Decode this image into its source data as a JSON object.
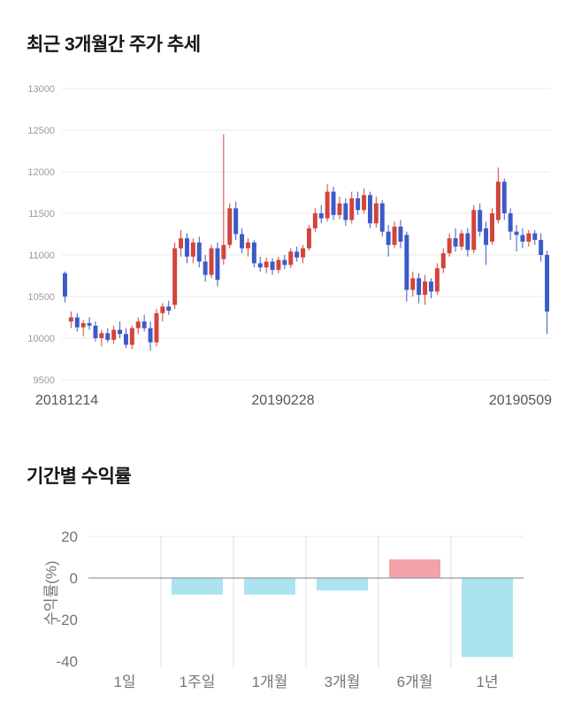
{
  "sections": {
    "price_trend": {
      "title": "최근 3개월간 주가 추세"
    },
    "returns": {
      "title": "기간별 수익률"
    }
  },
  "chart_data": [
    {
      "type": "candlestick",
      "title": "최근 3개월간 주가 추세",
      "ylim": [
        9500,
        13000
      ],
      "y_ticks": [
        13000,
        12500,
        12000,
        11500,
        11000,
        10500,
        10000,
        9500
      ],
      "x_tick_labels": [
        "20181214",
        "20190228",
        "20190509"
      ],
      "grid": "horizontal",
      "up_color": "#d2443c",
      "down_color": "#3c5bc7",
      "grid_color": "#e8e8e8",
      "candles": [
        [
          10780,
          10800,
          10430,
          10500
        ],
        [
          10200,
          10320,
          10120,
          10250
        ],
        [
          10250,
          10300,
          10080,
          10130
        ],
        [
          10130,
          10220,
          10020,
          10180
        ],
        [
          10180,
          10250,
          10100,
          10150
        ],
        [
          10150,
          10200,
          9960,
          10000
        ],
        [
          10000,
          10100,
          9900,
          10060
        ],
        [
          10060,
          10120,
          9950,
          9980
        ],
        [
          9980,
          10150,
          9930,
          10100
        ],
        [
          10100,
          10200,
          10000,
          10050
        ],
        [
          10050,
          10120,
          9880,
          9920
        ],
        [
          9920,
          10150,
          9870,
          10120
        ],
        [
          10120,
          10250,
          10050,
          10200
        ],
        [
          10200,
          10280,
          10080,
          10120
        ],
        [
          10120,
          10200,
          9850,
          9950
        ],
        [
          9950,
          10350,
          9900,
          10300
        ],
        [
          10300,
          10420,
          10200,
          10380
        ],
        [
          10380,
          10450,
          10280,
          10330
        ],
        [
          10400,
          11150,
          10350,
          11080
        ],
        [
          11080,
          11300,
          10980,
          11200
        ],
        [
          11200,
          11260,
          10900,
          10980
        ],
        [
          10980,
          11200,
          10900,
          11150
        ],
        [
          11150,
          11220,
          10850,
          10920
        ],
        [
          10920,
          11000,
          10680,
          10760
        ],
        [
          10760,
          11120,
          10720,
          11080
        ],
        [
          11080,
          11150,
          10620,
          10700
        ],
        [
          10950,
          12450,
          10880,
          11120
        ],
        [
          11120,
          11620,
          11080,
          11560
        ],
        [
          11560,
          11640,
          11180,
          11250
        ],
        [
          11250,
          11320,
          11020,
          11080
        ],
        [
          11080,
          11200,
          10980,
          11150
        ],
        [
          11150,
          11180,
          10850,
          10900
        ],
        [
          10900,
          10980,
          10800,
          10850
        ],
        [
          10850,
          10970,
          10780,
          10920
        ],
        [
          10920,
          10960,
          10760,
          10820
        ],
        [
          10820,
          10980,
          10780,
          10940
        ],
        [
          10940,
          11000,
          10830,
          10880
        ],
        [
          10880,
          11080,
          10840,
          11040
        ],
        [
          11040,
          11100,
          10920,
          10970
        ],
        [
          10970,
          11120,
          10900,
          11080
        ],
        [
          11080,
          11360,
          11050,
          11320
        ],
        [
          11320,
          11560,
          11280,
          11500
        ],
        [
          11500,
          11600,
          11380,
          11440
        ],
        [
          11440,
          11850,
          11400,
          11760
        ],
        [
          11760,
          11820,
          11420,
          11480
        ],
        [
          11480,
          11700,
          11430,
          11620
        ],
        [
          11620,
          11680,
          11350,
          11420
        ],
        [
          11420,
          11760,
          11380,
          11680
        ],
        [
          11680,
          11760,
          11480,
          11540
        ],
        [
          11540,
          11800,
          11500,
          11720
        ],
        [
          11720,
          11760,
          11320,
          11380
        ],
        [
          11380,
          11700,
          11330,
          11620
        ],
        [
          11620,
          11660,
          11220,
          11280
        ],
        [
          11280,
          11360,
          10980,
          11120
        ],
        [
          11120,
          11400,
          11080,
          11340
        ],
        [
          11340,
          11420,
          11080,
          11160
        ],
        [
          11240,
          11280,
          10440,
          10580
        ],
        [
          10580,
          10800,
          10500,
          10720
        ],
        [
          10720,
          10780,
          10420,
          10520
        ],
        [
          10520,
          10760,
          10400,
          10680
        ],
        [
          10680,
          10720,
          10480,
          10560
        ],
        [
          10560,
          10900,
          10520,
          10840
        ],
        [
          10840,
          11080,
          10780,
          11020
        ],
        [
          11020,
          11260,
          10980,
          11200
        ],
        [
          11200,
          11320,
          11040,
          11100
        ],
        [
          11100,
          11300,
          11060,
          11260
        ],
        [
          11260,
          11320,
          10980,
          11060
        ],
        [
          11060,
          11600,
          11020,
          11540
        ],
        [
          11540,
          11620,
          11220,
          11280
        ],
        [
          11320,
          11400,
          10880,
          11120
        ],
        [
          11160,
          11560,
          11120,
          11500
        ],
        [
          11420,
          12050,
          11380,
          11880
        ],
        [
          11880,
          11920,
          11420,
          11500
        ],
        [
          11500,
          11560,
          11180,
          11280
        ],
        [
          11280,
          11360,
          11040,
          11240
        ],
        [
          11240,
          11320,
          11080,
          11160
        ],
        [
          11160,
          11300,
          11100,
          11260
        ],
        [
          11260,
          11300,
          11120,
          11180
        ],
        [
          11180,
          11260,
          10920,
          11000
        ],
        [
          11000,
          11050,
          10050,
          10320
        ]
      ]
    },
    {
      "type": "bar",
      "title": "기간별 수익률",
      "categories": [
        "1일",
        "1주일",
        "1개월",
        "3개월",
        "6개월",
        "1년"
      ],
      "values": [
        0,
        -8,
        -8,
        -6,
        9,
        -38
      ],
      "ylabel": "수익률(%)",
      "y_ticks": [
        20,
        0,
        -20,
        -40
      ],
      "ylim": [
        -43,
        20
      ],
      "grid": "vertical",
      "positive_color": "#f2a2a8",
      "negative_color": "#abe4f0",
      "grid_color": "#dddddd",
      "zero_line_color": "#9a9a9a"
    }
  ]
}
